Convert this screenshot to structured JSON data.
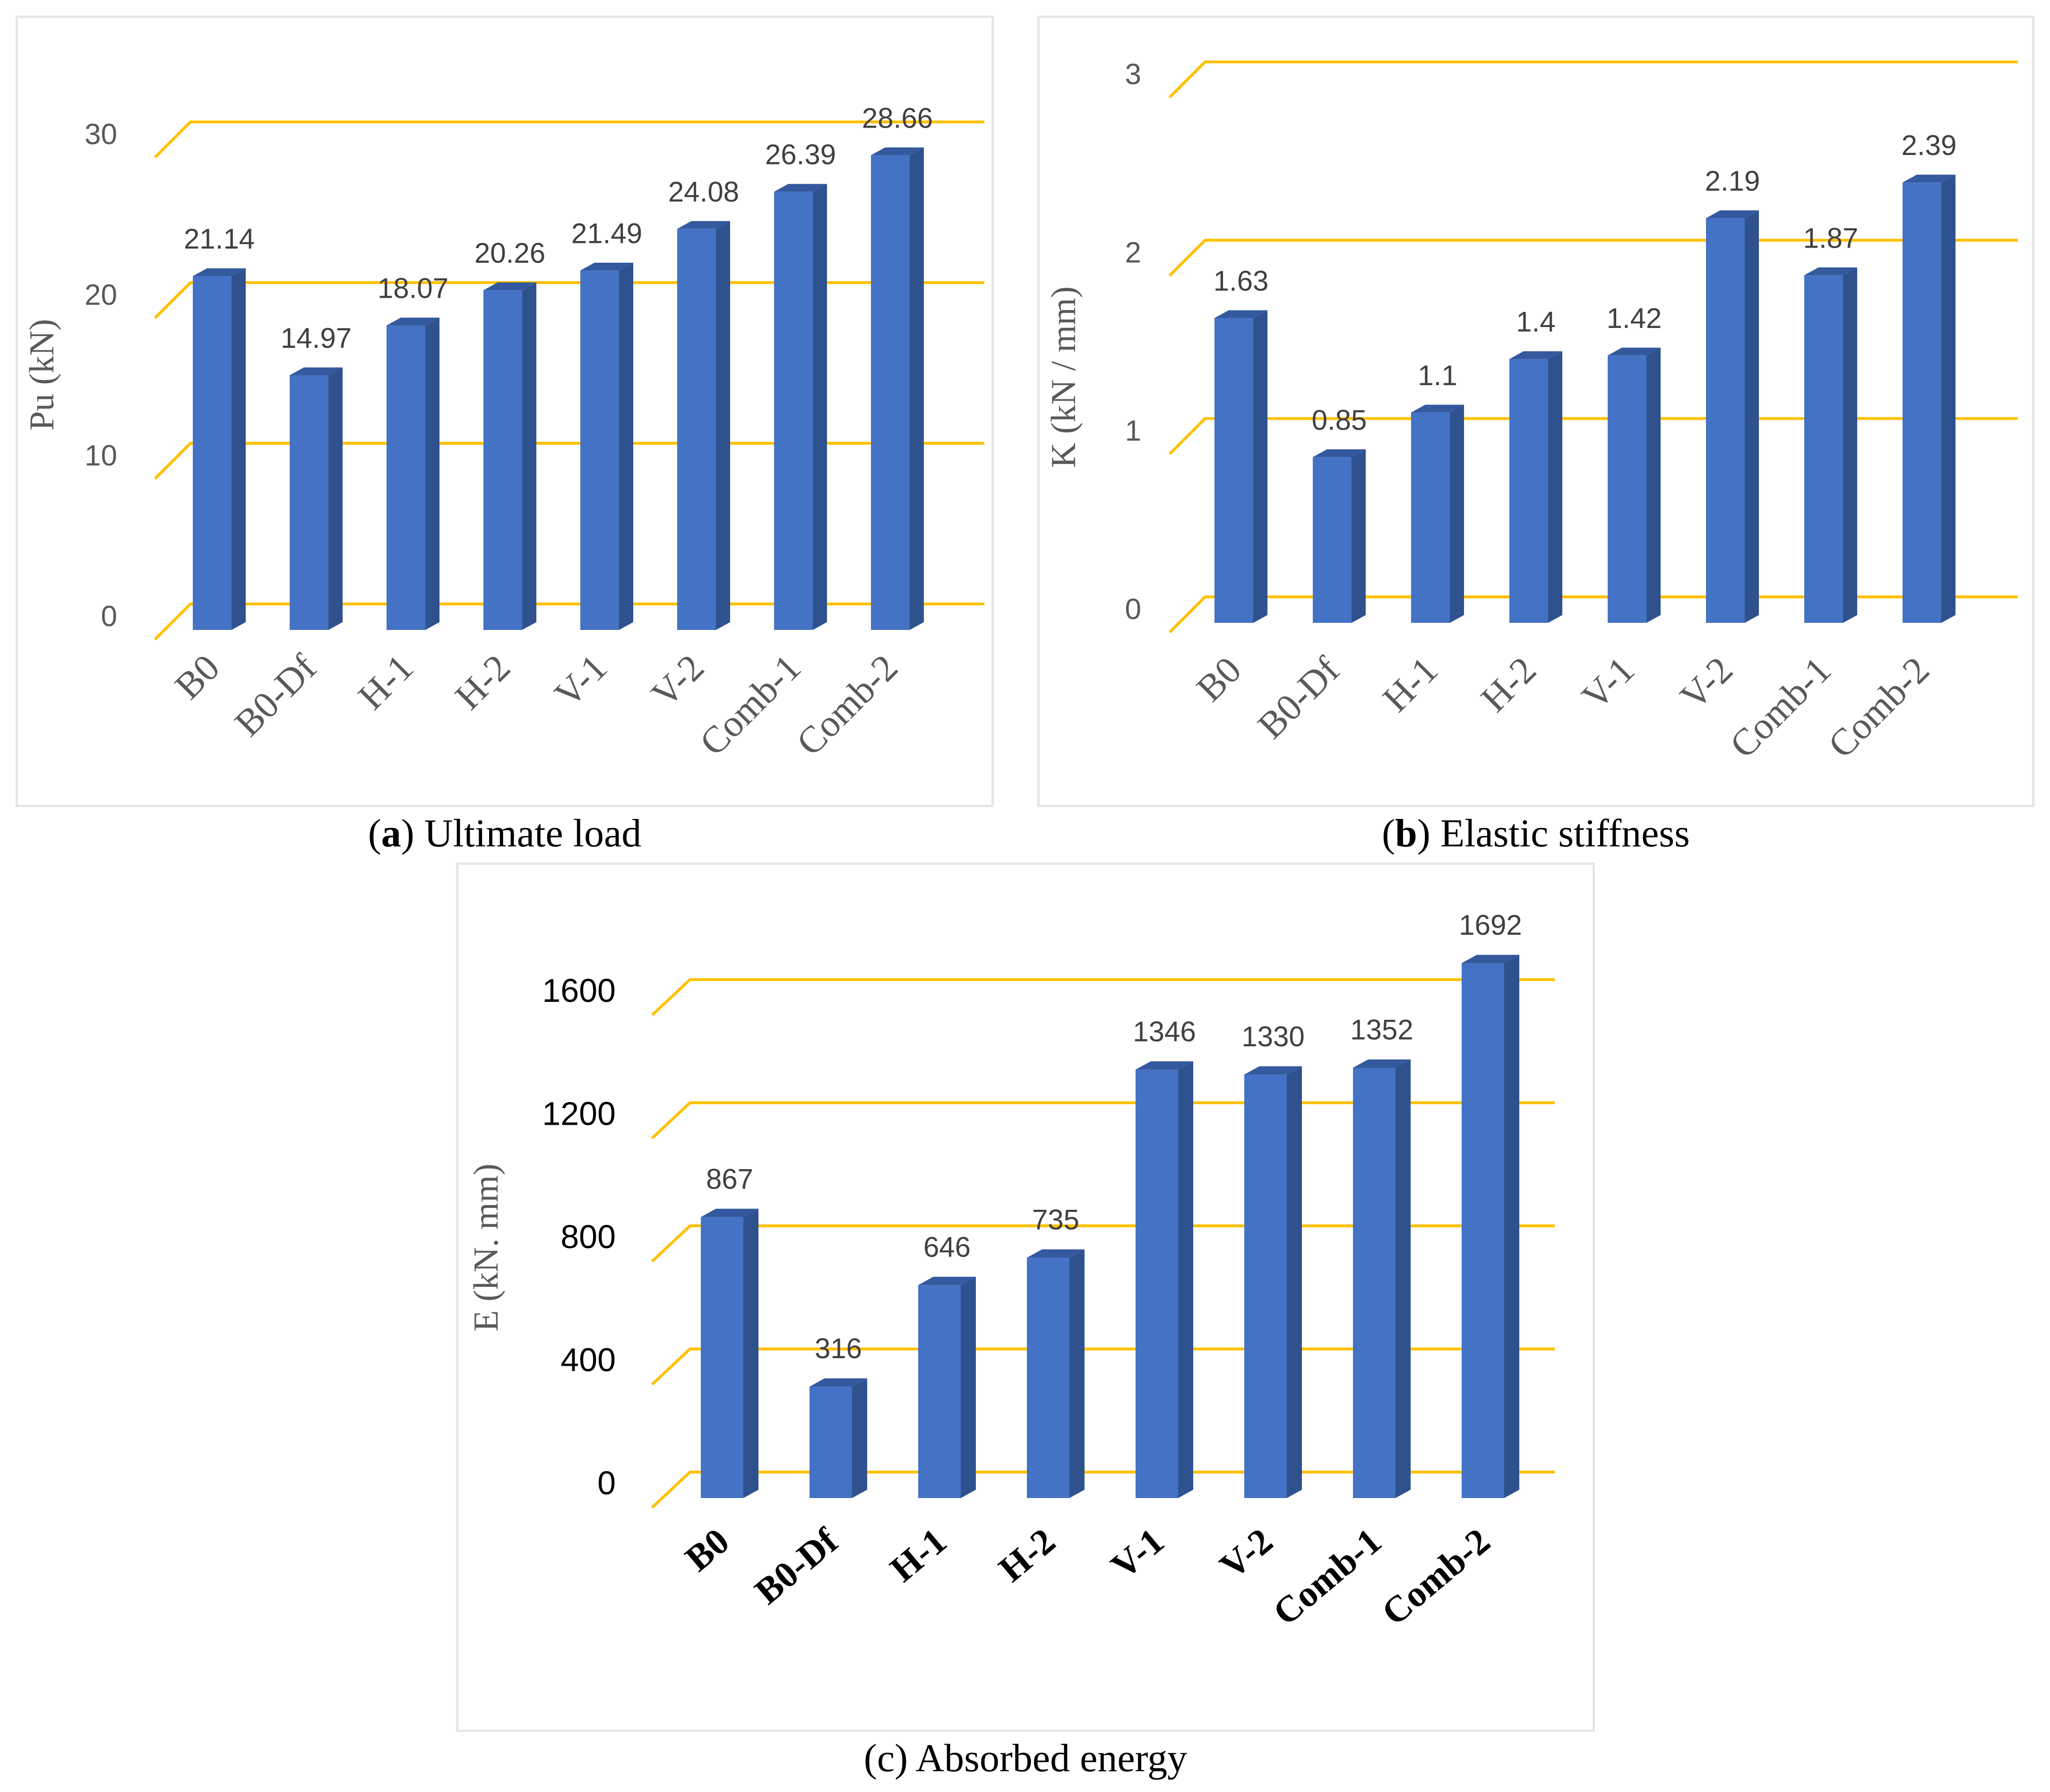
{
  "colors": {
    "bar_front": "#4472c4",
    "bar_side": "#2f528f",
    "bar_top": "#34599e",
    "gridline": "#ffc000",
    "border": "#e6e6e6"
  },
  "chart_data": [
    {
      "id": "a",
      "type": "bar",
      "title": "Ultimate load",
      "caption_letter": "a",
      "caption_text": "Ultimate load",
      "xlabel": "",
      "ylabel": "Pu (kN)",
      "ylim": [
        0,
        30
      ],
      "yticks": [
        0,
        10,
        20,
        30
      ],
      "grid": true,
      "categories": [
        "B0",
        "B0-Df",
        "H-1",
        "H-2",
        "V-1",
        "V-2",
        "Comb-1",
        "Comb-2"
      ],
      "values": [
        21.14,
        14.97,
        18.07,
        20.26,
        21.49,
        24.08,
        26.39,
        28.66
      ],
      "value_labels": [
        "21.14",
        "14.97",
        "18.07",
        "20.26",
        "21.49",
        "24.08",
        "26.39",
        "28.66"
      ]
    },
    {
      "id": "b",
      "type": "bar",
      "title": "Elastic stiffness",
      "caption_letter": "b",
      "caption_text": "Elastic stiffness",
      "xlabel": "",
      "ylabel": "K (kN / mm)",
      "ylim": [
        0,
        3
      ],
      "yticks": [
        0,
        1,
        2,
        3
      ],
      "grid": true,
      "categories": [
        "B0",
        "B0-Df",
        "H-1",
        "H-2",
        "V-1",
        "V-2",
        "Comb-1",
        "Comb-2"
      ],
      "values": [
        1.63,
        0.85,
        1.1,
        1.4,
        1.42,
        2.19,
        1.87,
        2.39
      ],
      "value_labels": [
        "1.63",
        "0.85",
        "1.1",
        "1.4",
        "1.42",
        "2.19",
        "1.87",
        "2.39"
      ]
    },
    {
      "id": "c",
      "type": "bar",
      "title": "Absorbed energy",
      "caption_letter": "c",
      "caption_text": "Absorbed energy",
      "xlabel": "",
      "ylabel": "E (kN. mm)",
      "ylim": [
        0,
        1600
      ],
      "yticks": [
        0,
        400,
        800,
        1200,
        1600
      ],
      "grid": true,
      "categories": [
        "B0",
        "B0-Df",
        "H-1",
        "H-2",
        "V-1",
        "V-2",
        "Comb-1",
        "Comb-2"
      ],
      "values": [
        867,
        316,
        646,
        735,
        1346,
        1330,
        1352,
        1692
      ],
      "value_labels": [
        "867",
        "316",
        "646",
        "735",
        "1346",
        "1330",
        "1352",
        "1692"
      ]
    }
  ]
}
